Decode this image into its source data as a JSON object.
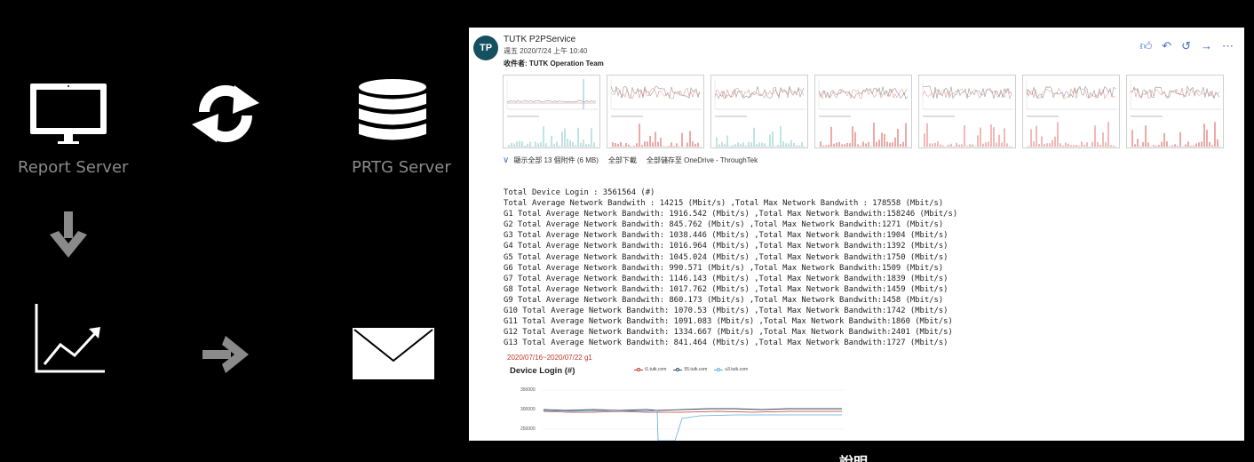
{
  "diagram": {
    "report_server_label": "Report Server",
    "prtg_server_label": "PRTG Server",
    "icons": [
      "monitor-icon",
      "refresh-cycle-icon",
      "database-icon",
      "arrow-down-icon",
      "line-chart-icon",
      "arrow-right-icon",
      "envelope-icon"
    ],
    "icon_color": "#ffffff",
    "arrow_color": "#8a8a8a"
  },
  "email": {
    "avatar_initials": "TP",
    "sender": "TUTK P2PService",
    "date": "週五 2020/7/24 上午 10:40",
    "recipients_label": "收件者:",
    "recipients": "TUTK Operation Team",
    "actions": [
      "like-icon",
      "reply-icon",
      "reply-all-icon",
      "forward-icon",
      "more-icon"
    ],
    "attachments": {
      "show_all": "顯示全部 13 個附件 (6 MB)",
      "download_all": "全部下載",
      "save_all": "全部儲存至 OneDrive - ThroughTek"
    },
    "body_lines": [
      "Total Device Login : 3561564 (#)",
      "Total Average Network Bandwith : 14215 (Mbit/s) ,Total Max Network Bandwith : 178558 (Mbit/s)",
      "G1 Total Average Network Bandwith: 1916.542 (Mbit/s) ,Total Max Network Bandwith:158246 (Mbit/s)",
      "G2 Total Average Network Bandwith: 845.762 (Mbit/s) ,Total Max Network Bandwith:1271 (Mbit/s)",
      "G3 Total Average Network Bandwith: 1038.446 (Mbit/s) ,Total Max Network Bandwith:1904 (Mbit/s)",
      "G4 Total Average Network Bandwith: 1016.964 (Mbit/s) ,Total Max Network Bandwith:1392 (Mbit/s)",
      "G5 Total Average Network Bandwith: 1045.024 (Mbit/s) ,Total Max Network Bandwith:1750 (Mbit/s)",
      "G6 Total Average Network Bandwith: 990.571 (Mbit/s) ,Total Max Network Bandwith:1509 (Mbit/s)",
      "G7 Total Average Network Bandwith: 1146.143 (Mbit/s) ,Total Max Network Bandwith:1839 (Mbit/s)",
      "G8 Total Average Network Bandwith: 1017.762 (Mbit/s) ,Total Max Network Bandwith:1459 (Mbit/s)",
      "G9 Total Average Network Bandwith: 860.173 (Mbit/s) ,Total Max Network Bandwith:1458 (Mbit/s)",
      "G10 Total Average Network Bandwith: 1070.53 (Mbit/s) ,Total Max Network Bandwith:1742 (Mbit/s)",
      "G11 Total Average Network Bandwith: 1091.083 (Mbit/s) ,Total Max Network Bandwith:1860 (Mbit/s)",
      "G12 Total Average Network Bandwith: 1334.667 (Mbit/s) ,Total Max Network Bandwith:2401 (Mbit/s)",
      "G13 Total Average Network Bandwith: 841.464 (Mbit/s) ,Total Max Network Bandwith:1727 (Mbit/s)"
    ],
    "report_date": "2020/07/16~2020/07/22 g1",
    "chart_title": "Device Login (#)",
    "legend": [
      {
        "name": "t1.tutk.com",
        "color": "#c0392b"
      },
      {
        "name": "55.tutk.com",
        "color": "#34495e"
      },
      {
        "name": "u3.tutk.com",
        "color": "#5dade2"
      }
    ],
    "y_ticks": [
      "350000",
      "300000",
      "250000"
    ]
  },
  "chart_data": {
    "type": "line",
    "title": "Device Login (#)",
    "series": [
      {
        "name": "t1.tutk.com",
        "color": "#c0392b"
      },
      {
        "name": "55.tutk.com",
        "color": "#34495e"
      },
      {
        "name": "u3.tutk.com",
        "color": "#5dade2"
      }
    ],
    "y_ticks": [
      350000,
      300000,
      250000
    ]
  },
  "caption": "說明"
}
